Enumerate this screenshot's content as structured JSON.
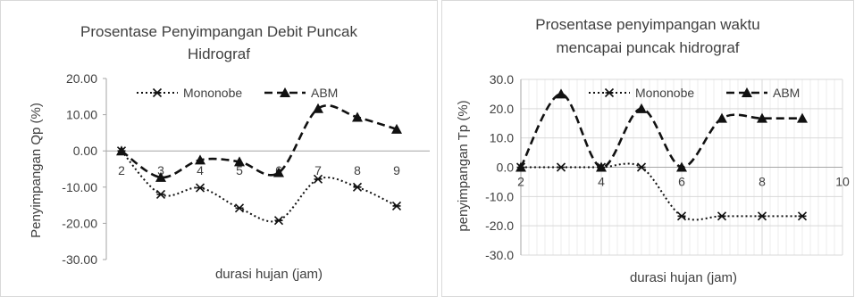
{
  "chart_data": [
    {
      "type": "line",
      "title_line1": "Prosentase Penyimpangan Debit Puncak",
      "title_line2": "Hidrograf",
      "xlabel": "durasi hujan (jam)",
      "ylabel": "Penyimpangan Qp (%)",
      "ylim": [
        -30,
        20
      ],
      "yticks": [
        "20.00",
        "10.00",
        "0.00",
        "-10.00",
        "-20.00",
        "-30.00"
      ],
      "categories": [
        "2",
        "3",
        "4",
        "5",
        "6",
        "7",
        "8",
        "9"
      ],
      "grid": false,
      "legend": "top",
      "series": [
        {
          "name": "Mononobe",
          "marker": "star",
          "values": [
            0,
            -12,
            -10.2,
            -15.8,
            -19.2,
            -7.8,
            -10,
            -15.2
          ]
        },
        {
          "name": "ABM",
          "marker": "triangle",
          "values": [
            0,
            -7.3,
            -2.5,
            -3,
            -6,
            11.7,
            9.3,
            6
          ]
        }
      ]
    },
    {
      "type": "scatter",
      "title_line1": "Prosentase penyimpangan waktu",
      "title_line2": "mencapai puncak hidrograf",
      "xlabel": "durasi hujan (jam)",
      "ylabel": "penyimpangan Tp (%)",
      "xlim": [
        2,
        10
      ],
      "ylim": [
        -30,
        30
      ],
      "xticks": [
        "2",
        "4",
        "6",
        "8",
        "10"
      ],
      "yticks": [
        "30.0",
        "20.0",
        "10.0",
        "0.0",
        "-10.0",
        "-20.0",
        "-30.0"
      ],
      "grid": true,
      "legend": "top",
      "series": [
        {
          "name": "Mononobe",
          "marker": "star",
          "x": [
            2,
            3,
            4,
            5,
            6,
            7,
            8,
            9
          ],
          "y": [
            0,
            0,
            0,
            0,
            -16.7,
            -16.7,
            -16.7,
            -16.7
          ]
        },
        {
          "name": "ABM",
          "marker": "triangle",
          "x": [
            2,
            3,
            4,
            5,
            6,
            7,
            8,
            9
          ],
          "y": [
            0,
            25,
            0,
            20,
            0,
            16.7,
            16.7,
            16.7
          ]
        }
      ]
    }
  ]
}
